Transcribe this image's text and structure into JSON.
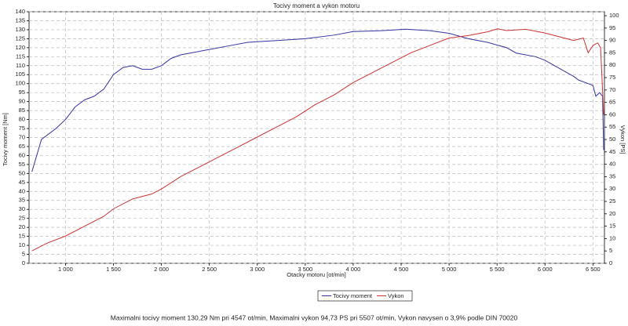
{
  "chart_data": {
    "type": "line",
    "title": "Tocivy moment a vykon motoru",
    "xlabel": "Otacky motoru [ot/min]",
    "ylabel": "Tocivy moment [Nm]",
    "y2label": "Vykon [PS]",
    "footnote": "Maximalni tocivy moment 130,29 Nm pri 4547 ot/min,  Maximalni vykon 94,73 PS pri 5507 ot/min,  Vykon navysen o 3,9% podle DIN 70020",
    "xlim": [
      620,
      6620
    ],
    "xticks": [
      {
        "value": 1000,
        "label": "1 000"
      },
      {
        "value": 1500,
        "label": "1 500"
      },
      {
        "value": 2000,
        "label": "2 000"
      },
      {
        "value": 2500,
        "label": "2 500"
      },
      {
        "value": 3000,
        "label": "3 000"
      },
      {
        "value": 3500,
        "label": "3 500"
      },
      {
        "value": 4000,
        "label": "4 000"
      },
      {
        "value": 4500,
        "label": "4 500"
      },
      {
        "value": 5000,
        "label": "5 000"
      },
      {
        "value": 5500,
        "label": "5 500"
      },
      {
        "value": 6000,
        "label": "6 000"
      },
      {
        "value": 6500,
        "label": "6 500"
      }
    ],
    "ylim": [
      0,
      140
    ],
    "yticks": [
      0,
      5,
      10,
      15,
      20,
      25,
      30,
      35,
      40,
      45,
      50,
      55,
      60,
      65,
      70,
      75,
      80,
      85,
      90,
      95,
      100,
      105,
      110,
      115,
      120,
      125,
      130,
      135,
      140
    ],
    "y2lim": [
      0,
      101.6
    ],
    "y2ticks": [
      0,
      5,
      10,
      15,
      20,
      25,
      30,
      35,
      40,
      45,
      50,
      55,
      60,
      65,
      70,
      75,
      80,
      85,
      90,
      95,
      100
    ],
    "grid": true,
    "series": [
      {
        "name": "Tocivy moment",
        "color": "#3333a0",
        "x": [
          650,
          750,
          900,
          1000,
          1100,
          1200,
          1300,
          1400,
          1500,
          1600,
          1700,
          1800,
          1900,
          2000,
          2100,
          2200,
          2300,
          2500,
          2700,
          2900,
          3200,
          3500,
          3800,
          4000,
          4300,
          4547,
          4800,
          5000,
          5200,
          5400,
          5600,
          5700,
          5900,
          6000,
          6100,
          6200,
          6300,
          6350,
          6450,
          6500,
          6530,
          6570,
          6600,
          6612
        ],
        "values": [
          51,
          69,
          75,
          80,
          87,
          91,
          93,
          97,
          105,
          109,
          110,
          108,
          108,
          110,
          114,
          116,
          117,
          119,
          121,
          123,
          124,
          125,
          127,
          129,
          129.5,
          130.3,
          129.5,
          128,
          125,
          123,
          120,
          117,
          115,
          113,
          110,
          107,
          104,
          102,
          100,
          99,
          93,
          95,
          93,
          63
        ]
      },
      {
        "name": "Vykon",
        "color": "#cc3333",
        "axis": "y2",
        "x": [
          650,
          800,
          1000,
          1200,
          1400,
          1500,
          1700,
          1900,
          2000,
          2200,
          2400,
          2600,
          2800,
          3000,
          3200,
          3400,
          3600,
          3800,
          4000,
          4200,
          4400,
          4600,
          4800,
          5000,
          5200,
          5400,
          5507,
          5600,
          5800,
          6000,
          6200,
          6300,
          6400,
          6450,
          6500,
          6550,
          6580,
          6612
        ],
        "values": [
          5,
          8,
          11,
          15,
          19,
          22,
          26,
          28,
          30,
          35,
          39,
          43,
          47,
          51,
          55,
          59,
          64,
          68,
          73,
          77,
          81,
          85,
          88,
          91,
          92,
          93.5,
          94.7,
          94,
          94.5,
          93,
          91,
          90,
          91,
          85,
          88,
          89,
          87,
          60
        ]
      }
    ]
  }
}
